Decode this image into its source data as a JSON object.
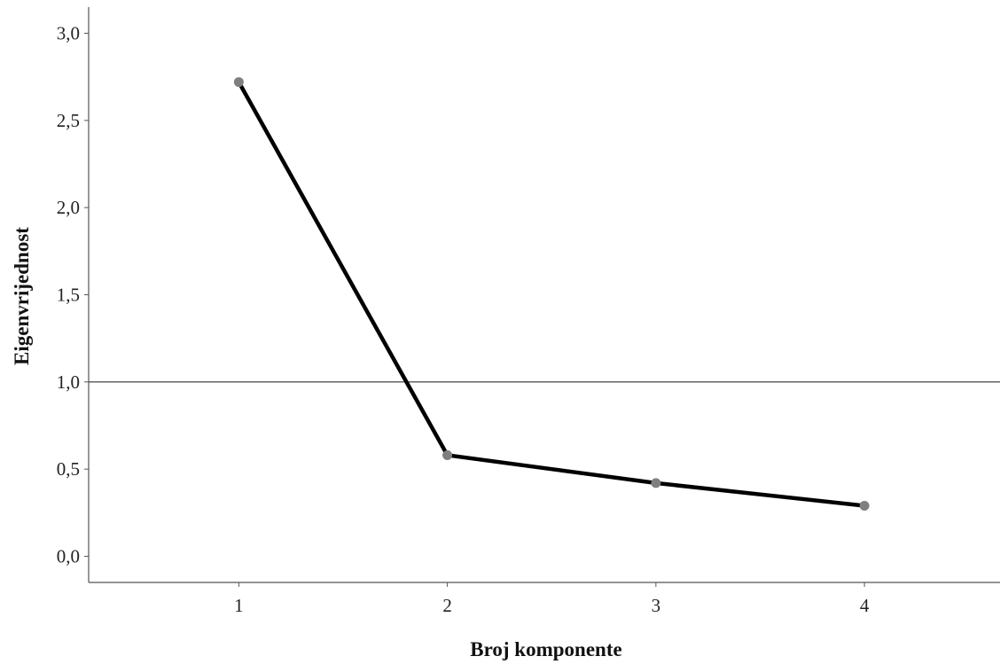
{
  "chart_data": {
    "type": "line",
    "title": "",
    "xlabel": "Broj komponente",
    "ylabel": "Eigenvrijednost",
    "x": [
      1,
      2,
      3,
      4
    ],
    "x_tick_labels": [
      "1",
      "2",
      "3",
      "4"
    ],
    "y_tick_labels": [
      "0,0",
      "0,5",
      "1,0",
      "1,5",
      "2,0",
      "2,5",
      "3,0"
    ],
    "y_ticks": [
      0,
      0.5,
      1.0,
      1.5,
      2.0,
      2.5,
      3.0
    ],
    "series": [
      {
        "values": [
          2.72,
          0.58,
          0.42,
          0.29
        ]
      }
    ],
    "reference_line": {
      "y": 1.0
    },
    "ylim": [
      -0.15,
      3.15
    ],
    "xlim": [
      0.28,
      4.65
    ],
    "grid": false,
    "colors": {
      "line": "#000000",
      "marker": "#7f7f7f",
      "reference": "#555555",
      "axis": "#555555"
    }
  }
}
